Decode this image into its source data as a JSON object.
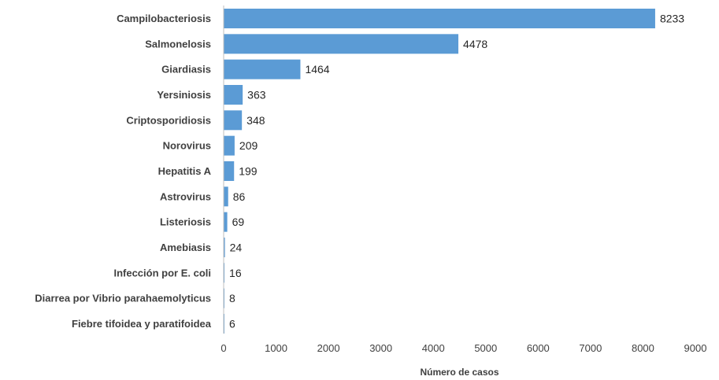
{
  "chart_data": {
    "type": "bar",
    "orientation": "horizontal",
    "categories": [
      "Campilobacteriosis",
      "Salmonelosis",
      "Giardiasis",
      "Yersiniosis",
      "Criptosporidiosis",
      "Norovirus",
      "Hepatitis A",
      "Astrovirus",
      "Listeriosis",
      "Amebiasis",
      "Infección por E. coli",
      "Diarrea por Vibrio parahaemolyticus",
      "Fiebre tifoidea y paratifoidea"
    ],
    "values": [
      8233,
      4478,
      1464,
      363,
      348,
      209,
      199,
      86,
      69,
      24,
      16,
      8,
      6
    ],
    "xlabel": "Número de casos",
    "ylabel": "",
    "xlim": [
      0,
      9000
    ],
    "xticks": [
      "0",
      "1000",
      "2000",
      "3000",
      "4000",
      "5000",
      "6000",
      "7000",
      "8000",
      "9000"
    ],
    "grid": false,
    "legend": "none",
    "bar_color": "#5b9bd5",
    "axis_color": "#bfbfbf"
  }
}
